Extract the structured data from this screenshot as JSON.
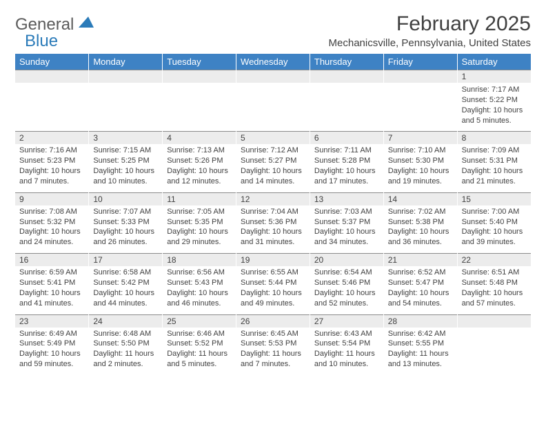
{
  "logo": {
    "text_gray": "General",
    "text_blue": "Blue"
  },
  "title": "February 2025",
  "location": "Mechanicsville, Pennsylvania, United States",
  "colors": {
    "header_bg": "#3e82c4",
    "header_text": "#ffffff",
    "dayrow_bg": "#ececec",
    "border": "#8a8a8a",
    "text": "#404040",
    "logo_blue": "#2b7bb9"
  },
  "day_headers": [
    "Sunday",
    "Monday",
    "Tuesday",
    "Wednesday",
    "Thursday",
    "Friday",
    "Saturday"
  ],
  "weeks": [
    {
      "nums": [
        "",
        "",
        "",
        "",
        "",
        "",
        "1"
      ],
      "cells": [
        null,
        null,
        null,
        null,
        null,
        null,
        {
          "sunrise": "Sunrise: 7:17 AM",
          "sunset": "Sunset: 5:22 PM",
          "day1": "Daylight: 10 hours",
          "day2": "and 5 minutes."
        }
      ]
    },
    {
      "nums": [
        "2",
        "3",
        "4",
        "5",
        "6",
        "7",
        "8"
      ],
      "cells": [
        {
          "sunrise": "Sunrise: 7:16 AM",
          "sunset": "Sunset: 5:23 PM",
          "day1": "Daylight: 10 hours",
          "day2": "and 7 minutes."
        },
        {
          "sunrise": "Sunrise: 7:15 AM",
          "sunset": "Sunset: 5:25 PM",
          "day1": "Daylight: 10 hours",
          "day2": "and 10 minutes."
        },
        {
          "sunrise": "Sunrise: 7:13 AM",
          "sunset": "Sunset: 5:26 PM",
          "day1": "Daylight: 10 hours",
          "day2": "and 12 minutes."
        },
        {
          "sunrise": "Sunrise: 7:12 AM",
          "sunset": "Sunset: 5:27 PM",
          "day1": "Daylight: 10 hours",
          "day2": "and 14 minutes."
        },
        {
          "sunrise": "Sunrise: 7:11 AM",
          "sunset": "Sunset: 5:28 PM",
          "day1": "Daylight: 10 hours",
          "day2": "and 17 minutes."
        },
        {
          "sunrise": "Sunrise: 7:10 AM",
          "sunset": "Sunset: 5:30 PM",
          "day1": "Daylight: 10 hours",
          "day2": "and 19 minutes."
        },
        {
          "sunrise": "Sunrise: 7:09 AM",
          "sunset": "Sunset: 5:31 PM",
          "day1": "Daylight: 10 hours",
          "day2": "and 21 minutes."
        }
      ]
    },
    {
      "nums": [
        "9",
        "10",
        "11",
        "12",
        "13",
        "14",
        "15"
      ],
      "cells": [
        {
          "sunrise": "Sunrise: 7:08 AM",
          "sunset": "Sunset: 5:32 PM",
          "day1": "Daylight: 10 hours",
          "day2": "and 24 minutes."
        },
        {
          "sunrise": "Sunrise: 7:07 AM",
          "sunset": "Sunset: 5:33 PM",
          "day1": "Daylight: 10 hours",
          "day2": "and 26 minutes."
        },
        {
          "sunrise": "Sunrise: 7:05 AM",
          "sunset": "Sunset: 5:35 PM",
          "day1": "Daylight: 10 hours",
          "day2": "and 29 minutes."
        },
        {
          "sunrise": "Sunrise: 7:04 AM",
          "sunset": "Sunset: 5:36 PM",
          "day1": "Daylight: 10 hours",
          "day2": "and 31 minutes."
        },
        {
          "sunrise": "Sunrise: 7:03 AM",
          "sunset": "Sunset: 5:37 PM",
          "day1": "Daylight: 10 hours",
          "day2": "and 34 minutes."
        },
        {
          "sunrise": "Sunrise: 7:02 AM",
          "sunset": "Sunset: 5:38 PM",
          "day1": "Daylight: 10 hours",
          "day2": "and 36 minutes."
        },
        {
          "sunrise": "Sunrise: 7:00 AM",
          "sunset": "Sunset: 5:40 PM",
          "day1": "Daylight: 10 hours",
          "day2": "and 39 minutes."
        }
      ]
    },
    {
      "nums": [
        "16",
        "17",
        "18",
        "19",
        "20",
        "21",
        "22"
      ],
      "cells": [
        {
          "sunrise": "Sunrise: 6:59 AM",
          "sunset": "Sunset: 5:41 PM",
          "day1": "Daylight: 10 hours",
          "day2": "and 41 minutes."
        },
        {
          "sunrise": "Sunrise: 6:58 AM",
          "sunset": "Sunset: 5:42 PM",
          "day1": "Daylight: 10 hours",
          "day2": "and 44 minutes."
        },
        {
          "sunrise": "Sunrise: 6:56 AM",
          "sunset": "Sunset: 5:43 PM",
          "day1": "Daylight: 10 hours",
          "day2": "and 46 minutes."
        },
        {
          "sunrise": "Sunrise: 6:55 AM",
          "sunset": "Sunset: 5:44 PM",
          "day1": "Daylight: 10 hours",
          "day2": "and 49 minutes."
        },
        {
          "sunrise": "Sunrise: 6:54 AM",
          "sunset": "Sunset: 5:46 PM",
          "day1": "Daylight: 10 hours",
          "day2": "and 52 minutes."
        },
        {
          "sunrise": "Sunrise: 6:52 AM",
          "sunset": "Sunset: 5:47 PM",
          "day1": "Daylight: 10 hours",
          "day2": "and 54 minutes."
        },
        {
          "sunrise": "Sunrise: 6:51 AM",
          "sunset": "Sunset: 5:48 PM",
          "day1": "Daylight: 10 hours",
          "day2": "and 57 minutes."
        }
      ]
    },
    {
      "nums": [
        "23",
        "24",
        "25",
        "26",
        "27",
        "28",
        ""
      ],
      "cells": [
        {
          "sunrise": "Sunrise: 6:49 AM",
          "sunset": "Sunset: 5:49 PM",
          "day1": "Daylight: 10 hours",
          "day2": "and 59 minutes."
        },
        {
          "sunrise": "Sunrise: 6:48 AM",
          "sunset": "Sunset: 5:50 PM",
          "day1": "Daylight: 11 hours",
          "day2": "and 2 minutes."
        },
        {
          "sunrise": "Sunrise: 6:46 AM",
          "sunset": "Sunset: 5:52 PM",
          "day1": "Daylight: 11 hours",
          "day2": "and 5 minutes."
        },
        {
          "sunrise": "Sunrise: 6:45 AM",
          "sunset": "Sunset: 5:53 PM",
          "day1": "Daylight: 11 hours",
          "day2": "and 7 minutes."
        },
        {
          "sunrise": "Sunrise: 6:43 AM",
          "sunset": "Sunset: 5:54 PM",
          "day1": "Daylight: 11 hours",
          "day2": "and 10 minutes."
        },
        {
          "sunrise": "Sunrise: 6:42 AM",
          "sunset": "Sunset: 5:55 PM",
          "day1": "Daylight: 11 hours",
          "day2": "and 13 minutes."
        },
        null
      ]
    }
  ]
}
